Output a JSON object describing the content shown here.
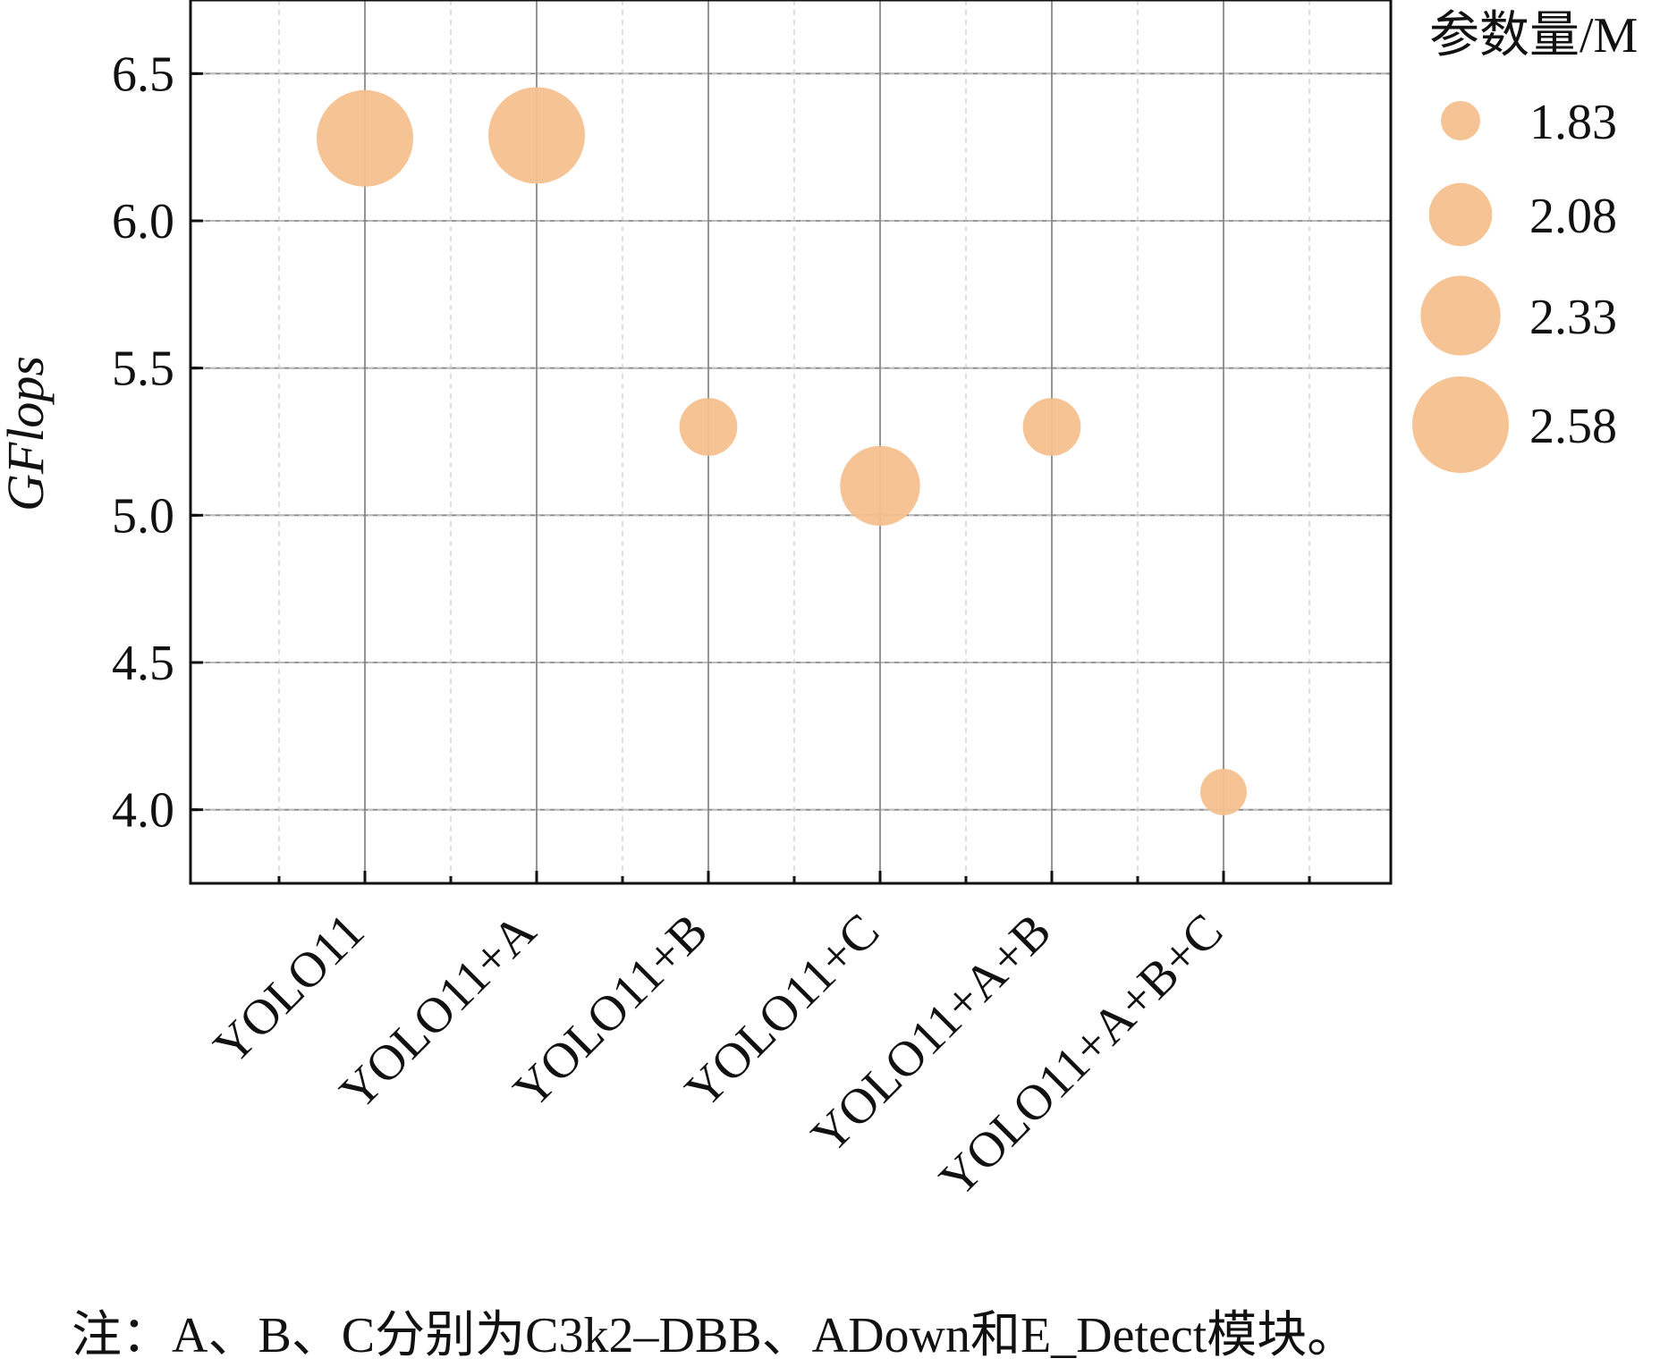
{
  "chart_data": {
    "type": "scatter",
    "subtype": "bubble",
    "categories": [
      "YOLO11",
      "YOLO11+A",
      "YOLO11+B",
      "YOLO11+C",
      "YOLO11+A+B",
      "YOLO11+A+B+C"
    ],
    "series": [
      {
        "y": [
          6.28,
          6.29,
          5.3,
          5.1,
          5.3,
          4.06
        ],
        "size": [
          2.58,
          2.58,
          2.0,
          2.33,
          2.0,
          1.83
        ]
      }
    ],
    "xlabel": "",
    "ylabel": "GFlops",
    "ylim": [
      3.75,
      6.75
    ],
    "yticks": [
      "4.0",
      "4.5",
      "5.0",
      "5.5",
      "6.0",
      "6.5"
    ],
    "grid": true,
    "legend": {
      "title": "参数量/M",
      "position": "right",
      "values": [
        "1.83",
        "2.08",
        "2.33",
        "2.58"
      ]
    },
    "colors": {
      "bubble": "#f5c08e",
      "axis": "#111111",
      "grid": "#888888"
    }
  },
  "note": "注：A、B、C分别为C3k2–DBB、ADown和E_Detect模块。"
}
